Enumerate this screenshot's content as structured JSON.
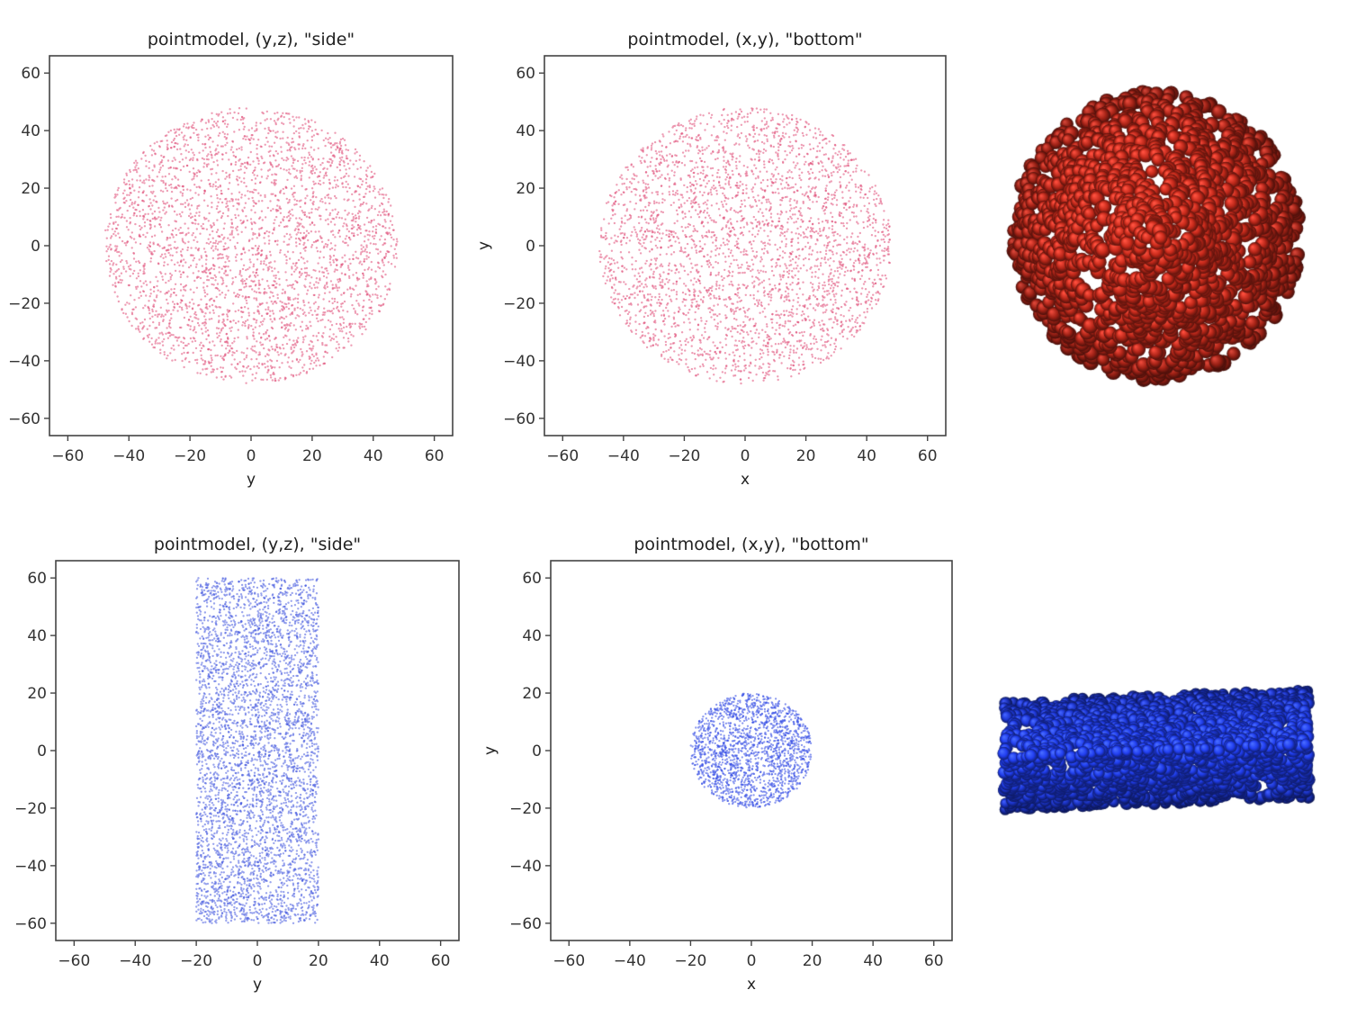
{
  "chart_data": [
    {
      "type": "scatter",
      "title": "pointmodel, (y,z), \"side\"",
      "xlabel": "y",
      "ylabel": "",
      "xlim": [
        -66,
        66
      ],
      "ylim": [
        -66,
        66
      ],
      "xticks": [
        -60,
        -40,
        -20,
        0,
        20,
        40,
        60
      ],
      "yticks": [
        -60,
        -40,
        -20,
        0,
        20,
        40,
        60
      ],
      "color": "#e0507a",
      "point_cloud": {
        "shape": "disk",
        "center": [
          0,
          0
        ],
        "radius": 48,
        "count": 3200
      }
    },
    {
      "type": "scatter",
      "title": "pointmodel, (x,y), \"bottom\"",
      "xlabel": "x",
      "ylabel": "y",
      "xlim": [
        -66,
        66
      ],
      "ylim": [
        -66,
        66
      ],
      "xticks": [
        -60,
        -40,
        -20,
        0,
        20,
        40,
        60
      ],
      "yticks": [
        -60,
        -40,
        -20,
        0,
        20,
        40,
        60
      ],
      "color": "#e0507a",
      "point_cloud": {
        "shape": "disk",
        "center": [
          0,
          0
        ],
        "radius": 48,
        "count": 3200
      }
    },
    {
      "type": "scatter",
      "title": "pointmodel, (y,z), \"side\"",
      "xlabel": "y",
      "ylabel": "",
      "xlim": [
        -66,
        66
      ],
      "ylim": [
        -66,
        66
      ],
      "xticks": [
        -60,
        -40,
        -20,
        0,
        20,
        40,
        60
      ],
      "yticks": [
        -60,
        -40,
        -20,
        0,
        20,
        40,
        60
      ],
      "color": "#4a5fe0",
      "point_cloud": {
        "shape": "rectangle",
        "x_range": [
          -20,
          20
        ],
        "y_range": [
          -60,
          60
        ],
        "count": 4200
      }
    },
    {
      "type": "scatter",
      "title": "pointmodel, (x,y), \"bottom\"",
      "xlabel": "x",
      "ylabel": "y",
      "xlim": [
        -66,
        66
      ],
      "ylim": [
        -66,
        66
      ],
      "xticks": [
        -60,
        -40,
        -20,
        0,
        20,
        40,
        60
      ],
      "yticks": [
        -60,
        -40,
        -20,
        0,
        20,
        40,
        60
      ],
      "color": "#3a52e6",
      "point_cloud": {
        "shape": "disk",
        "center": [
          0,
          0
        ],
        "radius": 20,
        "count": 1800
      }
    }
  ],
  "renders": [
    {
      "name": "sphere-render",
      "shape": "sphere",
      "color": "#c0281a"
    },
    {
      "name": "cylinder-render",
      "shape": "cylinder",
      "color": "#1f3be6"
    }
  ]
}
